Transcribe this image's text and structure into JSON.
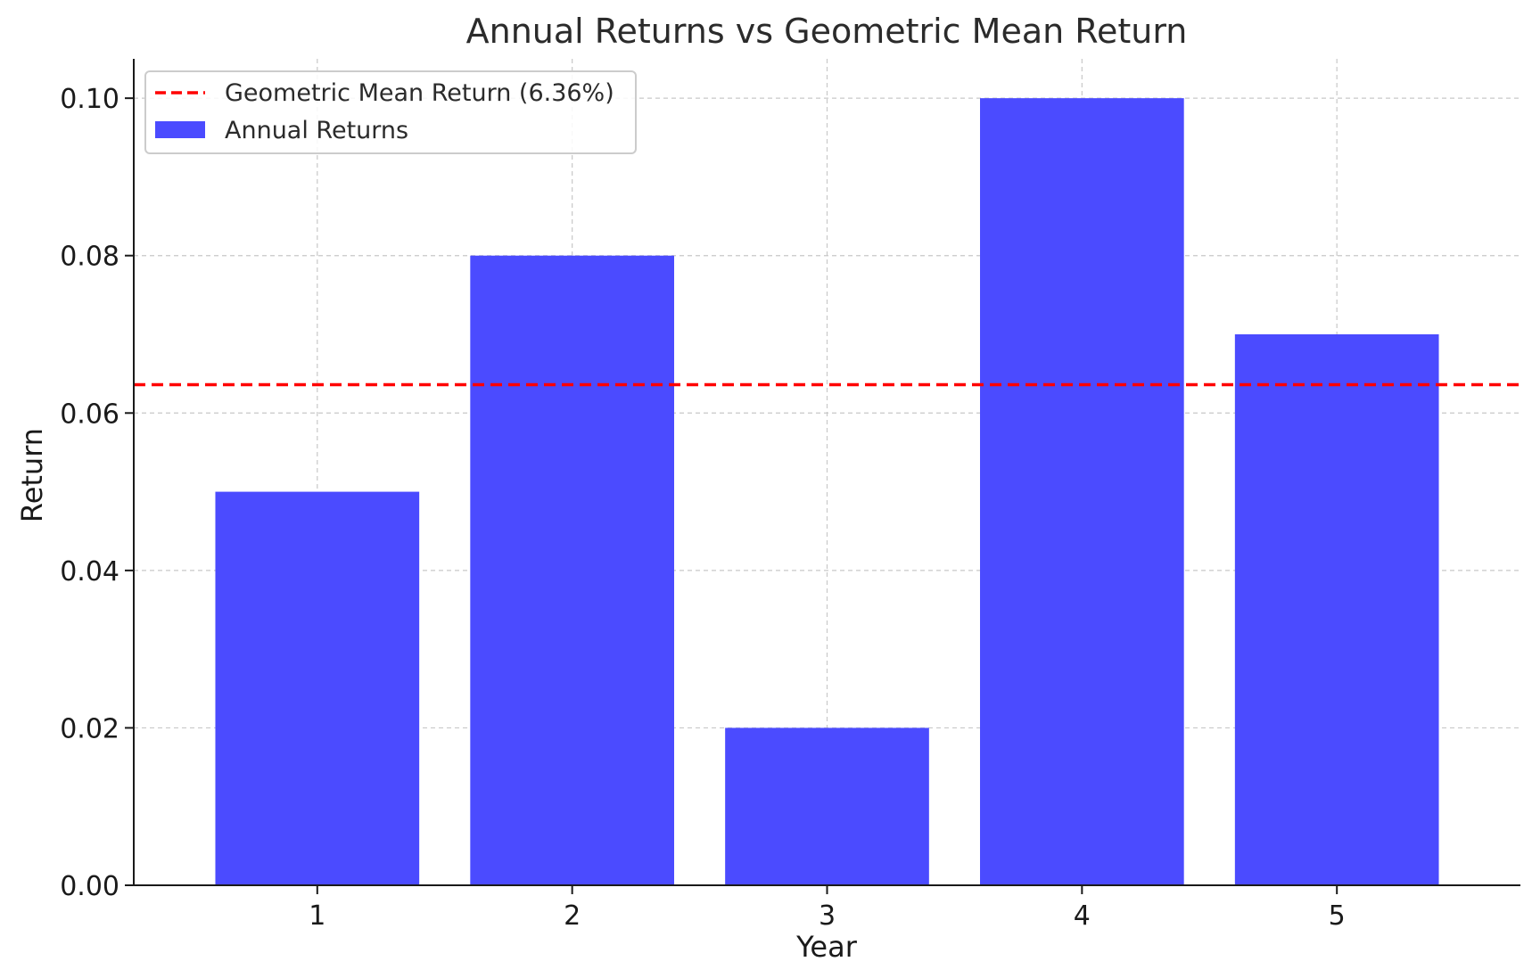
{
  "chart_data": {
    "type": "bar",
    "title": "Annual Returns vs Geometric Mean Return",
    "xlabel": "Year",
    "ylabel": "Return",
    "categories": [
      "1",
      "2",
      "3",
      "4",
      "5"
    ],
    "series": [
      {
        "name": "Annual Returns",
        "values": [
          0.05,
          0.08,
          0.02,
          0.1,
          0.07
        ],
        "color": "#4b4bff"
      }
    ],
    "reference_line": {
      "name": "Geometric Mean Return (6.36%)",
      "value": 0.0636,
      "color": "#ff0000",
      "style": "dashed"
    },
    "ylim": [
      0,
      0.105
    ],
    "yticks": [
      "0.00",
      "0.02",
      "0.04",
      "0.06",
      "0.08",
      "0.10"
    ],
    "grid": true,
    "legend_position": "top-left"
  }
}
